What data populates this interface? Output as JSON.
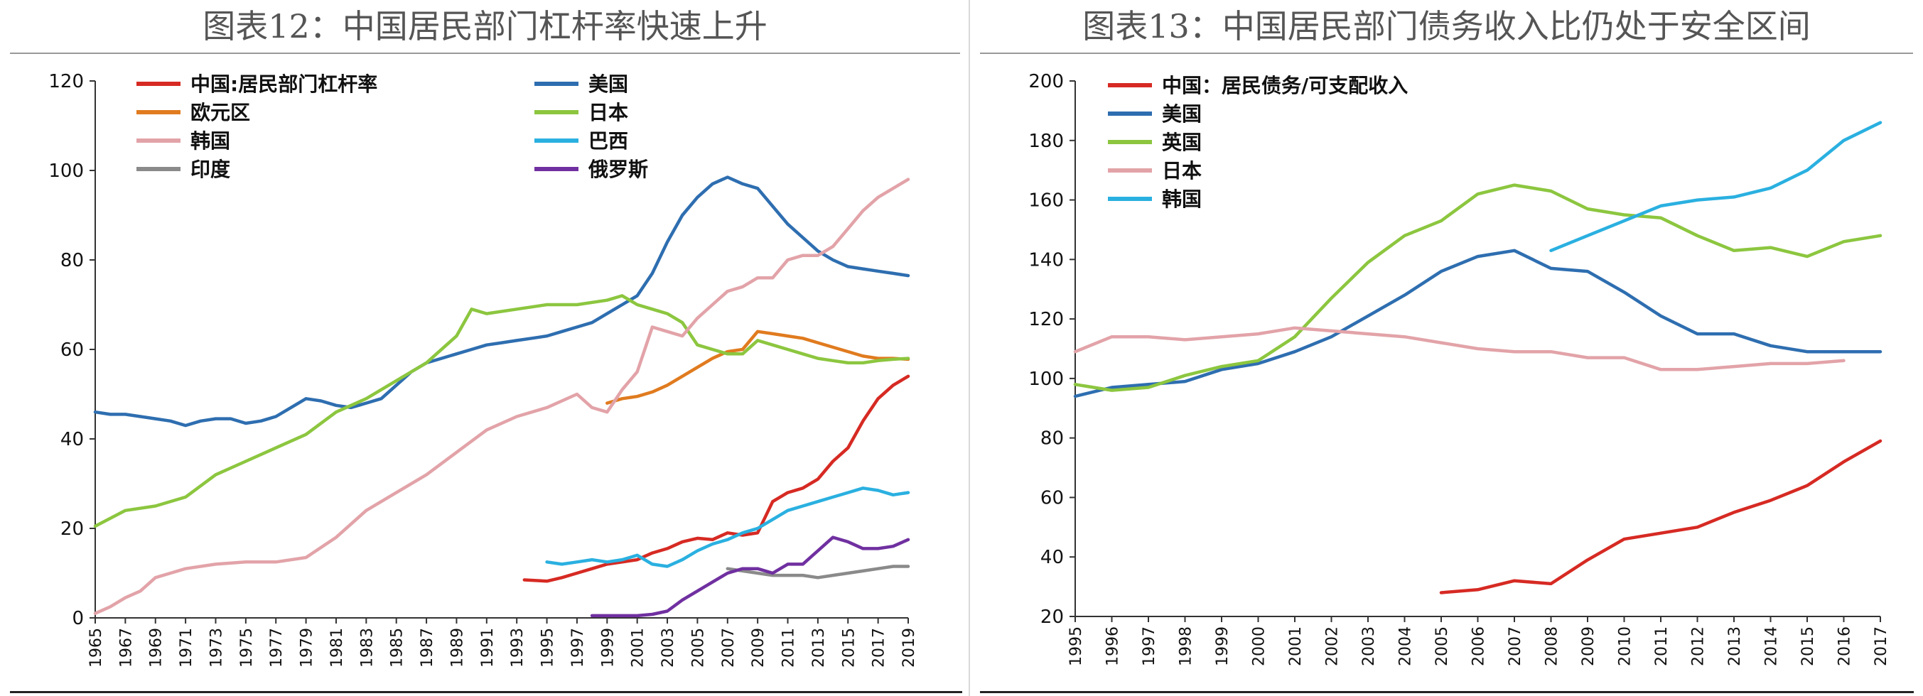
{
  "chart_data": [
    {
      "type": "line",
      "title": "图表12：中国居民部门杠杆率快速上升",
      "ylim": [
        0,
        120
      ],
      "yticks": [
        0,
        20,
        40,
        60,
        80,
        100,
        120
      ],
      "xlim": [
        1965,
        2019
      ],
      "xticks": [
        "1965",
        "1967",
        "1969",
        "1971",
        "1973",
        "1975",
        "1977",
        "1979",
        "1981",
        "1983",
        "1985",
        "1987",
        "1989",
        "1991",
        "1993",
        "1995",
        "1997",
        "1999",
        "2001",
        "2003",
        "2005",
        "2007",
        "2009",
        "2011",
        "2013",
        "2015",
        "2017",
        "2019"
      ],
      "grid": false,
      "legend": "top-left",
      "series": [
        {
          "name": "中国:居民部门杠杆率",
          "color": "#d62a23",
          "x": [
            1993.5,
            1995,
            1996,
            1997,
            1998,
            1999,
            2000,
            2001,
            2002,
            2003,
            2004,
            2005,
            2006,
            2007,
            2008,
            2009,
            2010,
            2011,
            2012,
            2013,
            2014,
            2015,
            2016,
            2017,
            2018,
            2019
          ],
          "y": [
            8.5,
            8.2,
            9,
            10,
            11,
            12,
            12.5,
            13,
            14.5,
            15.5,
            17,
            17.8,
            17.5,
            19,
            18.5,
            19,
            26,
            28,
            29,
            31,
            35,
            38,
            44,
            49,
            52,
            54
          ]
        },
        {
          "name": "美国",
          "color": "#2e6eb0",
          "x": [
            1965,
            1966,
            1967,
            1968,
            1969,
            1970,
            1971,
            1972,
            1973,
            1974,
            1975,
            1976,
            1977,
            1978,
            1979,
            1980,
            1981,
            1982,
            1983,
            1984,
            1985,
            1986,
            1987,
            1988,
            1989,
            1990,
            1991,
            1992,
            1993,
            1994,
            1995,
            1996,
            1997,
            1998,
            1999,
            2000,
            2001,
            2002,
            2003,
            2004,
            2005,
            2006,
            2007,
            2008,
            2009,
            2010,
            2011,
            2012,
            2013,
            2014,
            2015,
            2016,
            2017,
            2018,
            2019
          ],
          "y": [
            46,
            45.5,
            45.5,
            45,
            44.5,
            44,
            43,
            44,
            44.5,
            44.5,
            43.5,
            44,
            45,
            47,
            49,
            48.5,
            47.5,
            47,
            48,
            49,
            52,
            55,
            57,
            58,
            59,
            60,
            61,
            61.5,
            62,
            62.5,
            63,
            64,
            65,
            66,
            68,
            70,
            72,
            77,
            84,
            90,
            94,
            97,
            98.5,
            97,
            96,
            92,
            88,
            85,
            82,
            80,
            78.5,
            78,
            77.5,
            77,
            76.5
          ]
        },
        {
          "name": "欧元区",
          "color": "#e07b1f",
          "x": [
            1999,
            2000,
            2001,
            2002,
            2003,
            2004,
            2005,
            2006,
            2007,
            2008,
            2009,
            2010,
            2011,
            2012,
            2013,
            2014,
            2015,
            2016,
            2017,
            2018,
            2019
          ],
          "y": [
            48,
            49,
            49.5,
            50.5,
            52,
            54,
            56,
            58,
            59.5,
            60,
            64,
            63.5,
            63,
            62.5,
            61.5,
            60.5,
            59.5,
            58.5,
            58,
            58,
            57.8
          ]
        },
        {
          "name": "日本",
          "color": "#8cc63f",
          "x": [
            1965,
            1967,
            1969,
            1971,
            1973,
            1975,
            1977,
            1979,
            1981,
            1983,
            1985,
            1987,
            1989,
            1990,
            1991,
            1993,
            1995,
            1997,
            1999,
            2000,
            2001,
            2002,
            2003,
            2004,
            2005,
            2006,
            2007,
            2008,
            2009,
            2010,
            2011,
            2012,
            2013,
            2014,
            2015,
            2016,
            2017,
            2018,
            2019
          ],
          "y": [
            20.5,
            24,
            25,
            27,
            32,
            35,
            38,
            41,
            46,
            49,
            53,
            57,
            63,
            69,
            68,
            69,
            70,
            70,
            71,
            72,
            70,
            69,
            68,
            66,
            61,
            60,
            59,
            59,
            62,
            61,
            60,
            59,
            58,
            57.5,
            57,
            57,
            57.5,
            57.8,
            58
          ]
        },
        {
          "name": "韩国",
          "color": "#e2a3a8",
          "x": [
            1965,
            1966,
            1967,
            1968,
            1969,
            1970,
            1971,
            1973,
            1975,
            1977,
            1979,
            1981,
            1983,
            1985,
            1987,
            1989,
            1991,
            1993,
            1995,
            1997,
            1998,
            1999,
            2000,
            2001,
            2002,
            2003,
            2004,
            2005,
            2006,
            2007,
            2008,
            2009,
            2010,
            2011,
            2012,
            2013,
            2014,
            2015,
            2016,
            2017,
            2018,
            2019
          ],
          "y": [
            1,
            2.5,
            4.5,
            6,
            9,
            10,
            11,
            12,
            12.5,
            12.5,
            13.5,
            18,
            24,
            28,
            32,
            37,
            42,
            45,
            47,
            50,
            47,
            46,
            51,
            55,
            65,
            64,
            63,
            67,
            70,
            73,
            74,
            76,
            76,
            80,
            81,
            81,
            83,
            87,
            91,
            94,
            96,
            98
          ]
        },
        {
          "name": "巴西",
          "color": "#2ab0e0",
          "x": [
            1995,
            1996,
            1997,
            1998,
            1999,
            2000,
            2001,
            2002,
            2003,
            2004,
            2005,
            2006,
            2007,
            2008,
            2009,
            2010,
            2011,
            2012,
            2013,
            2014,
            2015,
            2016,
            2017,
            2018,
            2019
          ],
          "y": [
            12.5,
            12,
            12.5,
            13,
            12.5,
            13,
            14,
            12,
            11.5,
            13,
            15,
            16.5,
            17.5,
            19,
            20,
            22,
            24,
            25,
            26,
            27,
            28,
            29,
            28.5,
            27.5,
            28
          ]
        },
        {
          "name": "印度",
          "color": "#8a8a8a",
          "x": [
            2007,
            2008,
            2009,
            2010,
            2011,
            2012,
            2013,
            2014,
            2015,
            2016,
            2017,
            2018,
            2019
          ],
          "y": [
            11,
            10.5,
            10,
            9.5,
            9.5,
            9.5,
            9,
            9.5,
            10,
            10.5,
            11,
            11.5,
            11.5
          ]
        },
        {
          "name": "俄罗斯",
          "color": "#7030a0",
          "x": [
            1998,
            1999,
            2000,
            2001,
            2002,
            2003,
            2004,
            2005,
            2006,
            2007,
            2008,
            2009,
            2010,
            2011,
            2012,
            2013,
            2014,
            2015,
            2016,
            2017,
            2018,
            2019
          ],
          "y": [
            0.5,
            0.5,
            0.5,
            0.5,
            0.8,
            1.5,
            4,
            6,
            8,
            10,
            11,
            11,
            10,
            12,
            12,
            15,
            18,
            17,
            15.5,
            15.5,
            16,
            17.5
          ]
        }
      ]
    },
    {
      "type": "line",
      "title": "图表13：中国居民部门债务收入比仍处于安全区间",
      "ylim": [
        20,
        200
      ],
      "yticks": [
        20,
        40,
        60,
        80,
        100,
        120,
        140,
        160,
        180,
        200
      ],
      "xlim": [
        1995,
        2017
      ],
      "xticks": [
        "1995",
        "1996",
        "1997",
        "1998",
        "1999",
        "2000",
        "2001",
        "2002",
        "2003",
        "2004",
        "2005",
        "2006",
        "2007",
        "2008",
        "2009",
        "2010",
        "2011",
        "2012",
        "2013",
        "2014",
        "2015",
        "2016",
        "2017"
      ],
      "grid": false,
      "legend": "top-left",
      "series": [
        {
          "name": "中国：居民债务/可支配收入",
          "color": "#d62a23",
          "x": [
            2005,
            2006,
            2007,
            2008,
            2009,
            2010,
            2011,
            2012,
            2013,
            2014,
            2015,
            2016,
            2017
          ],
          "y": [
            28,
            29,
            32,
            31,
            39,
            46,
            48,
            50,
            55,
            59,
            64,
            72,
            79
          ]
        },
        {
          "name": "美国",
          "color": "#2e6eb0",
          "x": [
            1995,
            1996,
            1997,
            1998,
            1999,
            2000,
            2001,
            2002,
            2003,
            2004,
            2005,
            2006,
            2007,
            2008,
            2009,
            2010,
            2011,
            2012,
            2013,
            2014,
            2015,
            2016,
            2017
          ],
          "y": [
            94,
            97,
            98,
            99,
            103,
            105,
            109,
            114,
            121,
            128,
            136,
            141,
            143,
            137,
            136,
            129,
            121,
            115,
            115,
            111,
            109,
            109,
            109
          ]
        },
        {
          "name": "英国",
          "color": "#8cc63f",
          "x": [
            1995,
            1996,
            1997,
            1998,
            1999,
            2000,
            2001,
            2002,
            2003,
            2004,
            2005,
            2006,
            2007,
            2008,
            2009,
            2010,
            2011,
            2012,
            2013,
            2014,
            2015,
            2016,
            2017
          ],
          "y": [
            98,
            96,
            97,
            101,
            104,
            106,
            114,
            127,
            139,
            148,
            153,
            162,
            165,
            163,
            157,
            155,
            154,
            148,
            143,
            144,
            141,
            146,
            148
          ]
        },
        {
          "name": "日本",
          "color": "#e2a3a8",
          "x": [
            1995,
            1996,
            1997,
            1998,
            1999,
            2000,
            2001,
            2002,
            2003,
            2004,
            2005,
            2006,
            2007,
            2008,
            2009,
            2010,
            2011,
            2012,
            2013,
            2014,
            2015,
            2016
          ],
          "y": [
            109,
            114,
            114,
            113,
            114,
            115,
            117,
            116,
            115,
            114,
            112,
            110,
            109,
            109,
            107,
            107,
            103,
            103,
            104,
            105,
            105,
            106
          ]
        },
        {
          "name": "韩国",
          "color": "#2ab0e0",
          "x": [
            2008,
            2009,
            2010,
            2011,
            2012,
            2013,
            2014,
            2015,
            2016,
            2017
          ],
          "y": [
            143,
            148,
            153,
            158,
            160,
            161,
            164,
            170,
            180,
            186
          ]
        }
      ]
    }
  ]
}
